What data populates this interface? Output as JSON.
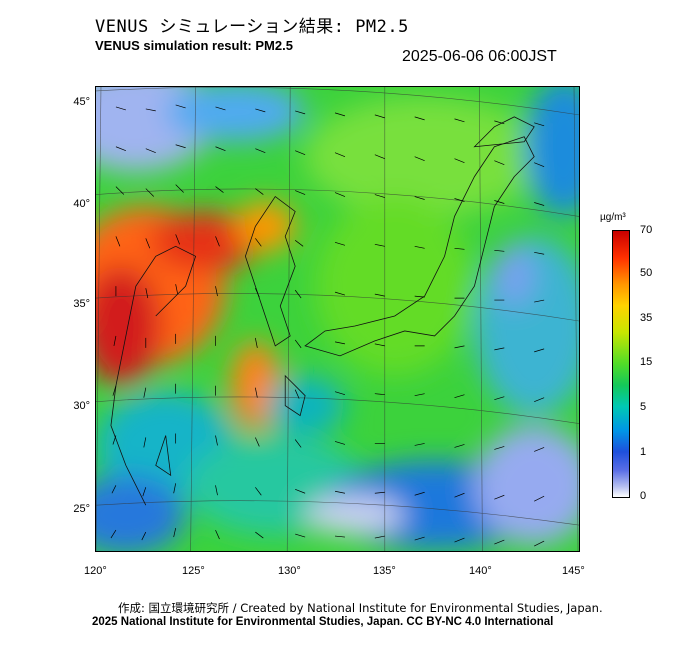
{
  "header": {
    "title_jp": "VENUS シミュレーション結果: PM2.5",
    "title_en": "VENUS simulation result: PM2.5",
    "timestamp": "2025-06-06 06:00JST"
  },
  "axes": {
    "longitude_ticks": [
      "120°",
      "125°",
      "130°",
      "135°",
      "140°",
      "145°"
    ],
    "latitude_ticks": [
      "45°",
      "40°",
      "35°",
      "30°",
      "25°"
    ]
  },
  "colorbar": {
    "unit": "µg/m³",
    "ticks": [
      "70",
      "50",
      "35",
      "15",
      "5",
      "1",
      "0"
    ]
  },
  "footer": {
    "credit_line": "作成: 国立環境研究所 / Created by National Institute for Environmental Studies, Japan.",
    "license_line": "2025 National Institute for Environmental Studies, Japan. CC BY-NC 4.0 International"
  }
}
